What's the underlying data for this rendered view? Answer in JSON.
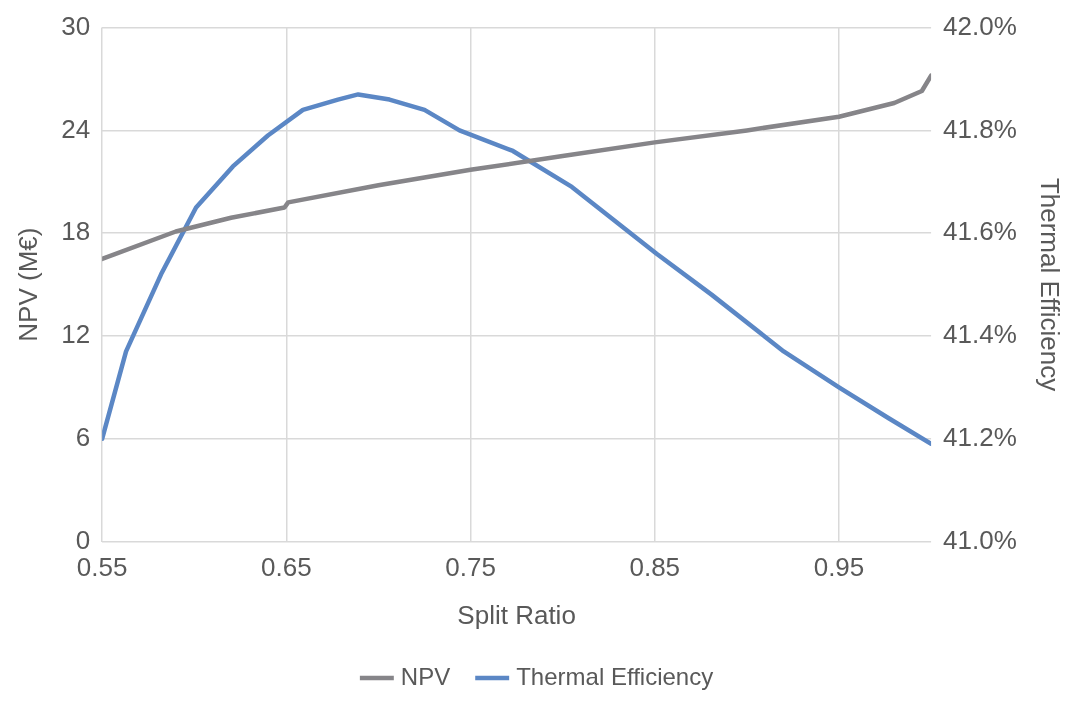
{
  "chart_data": {
    "type": "line",
    "xlabel": "Split Ratio",
    "ylabel": "NPV (M€)",
    "y2label": "Thermal Efficiency",
    "xlim": [
      0.55,
      1.0
    ],
    "xticks": [
      0.55,
      0.65,
      0.75,
      0.85,
      0.95
    ],
    "ylim": [
      0,
      30
    ],
    "yticks": [
      0,
      6,
      12,
      18,
      24,
      30
    ],
    "y2lim": [
      41,
      42
    ],
    "y2ticks": [
      {
        "value": 41,
        "label": "41.0%"
      },
      {
        "value": 41.2,
        "label": "41.2%"
      },
      {
        "value": 41.4,
        "label": "41.4%"
      },
      {
        "value": 41.6,
        "label": "41.6%"
      },
      {
        "value": 41.8,
        "label": "41.8%"
      },
      {
        "value": 42,
        "label": "42.0%"
      }
    ],
    "grid": true,
    "legend": "bottom",
    "marker": "none",
    "line_style": "solid",
    "series": [
      {
        "name": "NPV",
        "color": "#868589",
        "x": [
          0.55,
          0.59,
          0.62,
          0.649,
          0.651,
          0.7,
          0.75,
          0.8,
          0.85,
          0.9,
          0.95,
          0.98,
          0.995,
          1.0
        ],
        "values": [
          16.5,
          18.1,
          18.9,
          19.5,
          19.8,
          20.8,
          21.7,
          22.5,
          23.3,
          24.0,
          24.8,
          25.6,
          26.3,
          27.2
        ]
      },
      {
        "name": "Thermal Efficiency",
        "color": "#5b87c5",
        "axis": "y2",
        "x": [
          0.55,
          0.563,
          0.582,
          0.601,
          0.621,
          0.64,
          0.659,
          0.678,
          0.689,
          0.706,
          0.725,
          0.744,
          0.773,
          0.805,
          0.851,
          0.881,
          0.92,
          0.95,
          0.977,
          1.0
        ],
        "values": [
          41.2,
          41.37,
          41.52,
          41.65,
          41.73,
          41.79,
          41.84,
          41.86,
          41.87,
          41.86,
          41.84,
          41.8,
          41.76,
          41.69,
          41.56,
          41.48,
          41.37,
          41.3,
          41.24,
          41.19
        ]
      }
    ]
  }
}
